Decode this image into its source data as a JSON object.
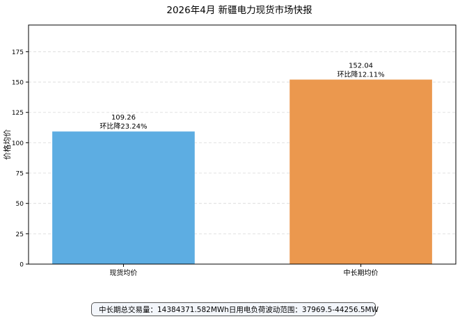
{
  "chart_data": {
    "type": "bar",
    "title": "2026年4月 新疆电力现货市场快报",
    "xlabel": "",
    "ylabel": "价格均价",
    "ylim": [
      0,
      197
    ],
    "yticks": [
      0,
      25,
      50,
      75,
      100,
      125,
      150,
      175
    ],
    "grid": true,
    "categories": [
      "现货均价",
      "中长期均价"
    ],
    "values": [
      109.26,
      152.04
    ],
    "value_labels": [
      "109.26",
      "152.04"
    ],
    "change_labels": [
      "环比降23.24%",
      "环比降12.11%"
    ],
    "colors": [
      "#5dade2",
      "#eb984e"
    ]
  },
  "footer": {
    "volume_text": "中长期总交易量：14384371.582MWh",
    "load_text": "日用电负荷波动范围：37969.5-44256.5MW"
  }
}
